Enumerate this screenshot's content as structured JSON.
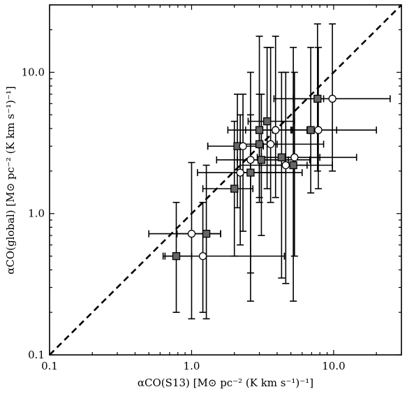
{
  "chart_data": {
    "type": "scatter",
    "xlabel": "αCO(S13) [M⊙ pc⁻² (K km s⁻¹)⁻¹]",
    "ylabel": "αCO(global) [M⊙ pc⁻² (K km s⁻¹)⁻¹]",
    "xscale": "log",
    "yscale": "log",
    "xlim": [
      0.1,
      30
    ],
    "ylim": [
      0.1,
      30
    ],
    "xticks": [
      {
        "value": 0.1,
        "label": "0.1"
      },
      {
        "value": 1.0,
        "label": "1.0"
      },
      {
        "value": 10.0,
        "label": "10.0"
      }
    ],
    "yticks": [
      {
        "value": 0.1,
        "label": "0.1"
      },
      {
        "value": 1.0,
        "label": "1.0"
      },
      {
        "value": 10.0,
        "label": "10.0"
      }
    ],
    "reference_line": {
      "style": "dashed",
      "color": "#000000",
      "from": [
        0.1,
        0.1
      ],
      "to": [
        30,
        30
      ]
    },
    "grid": false,
    "legend": "none",
    "series": [
      {
        "marker": "square",
        "fill": "#666666",
        "points": [
          {
            "x": 0.78,
            "y": 0.5,
            "xerr": [
              0.63,
              1.0
            ],
            "yerr": [
              0.2,
              1.2
            ]
          },
          {
            "x": 1.27,
            "y": 0.72,
            "xerr": [
              0.79,
              1.6
            ],
            "yerr": [
              0.18,
              2.2
            ]
          },
          {
            "x": 2.0,
            "y": 1.5,
            "xerr": [
              1.2,
              2.7
            ],
            "yerr": [
              0.5,
              4.5
            ]
          },
          {
            "x": 2.1,
            "y": 3.0,
            "xerr": [
              1.3,
              3.0
            ],
            "yerr": [
              1.1,
              7.0
            ]
          },
          {
            "x": 2.6,
            "y": 1.95,
            "xerr": [
              2.0,
              4.6
            ],
            "yerr": [
              0.24,
              5.0
            ]
          },
          {
            "x": 3.0,
            "y": 3.9,
            "xerr": [
              1.8,
              5.1
            ],
            "yerr": [
              1.3,
              18.0
            ]
          },
          {
            "x": 3.0,
            "y": 3.1,
            "xerr": [
              2.2,
              4.0
            ],
            "yerr": [
              1.2,
              7.0
            ]
          },
          {
            "x": 3.1,
            "y": 2.4,
            "xerr": [
              2.1,
              6.8
            ],
            "yerr": [
              0.7,
              7.0
            ]
          },
          {
            "x": 3.4,
            "y": 4.5,
            "xerr": [
              2.5,
              5.3
            ],
            "yerr": [
              1.5,
              15.0
            ]
          },
          {
            "x": 4.3,
            "y": 2.5,
            "xerr": [
              2.9,
              8.0
            ],
            "yerr": [
              0.35,
              10.0
            ]
          },
          {
            "x": 5.2,
            "y": 2.2,
            "xerr": [
              2.2,
              9.8
            ],
            "yerr": [
              0.24,
              15.0
            ]
          },
          {
            "x": 6.9,
            "y": 3.9,
            "xerr": [
              4.6,
              10.5
            ],
            "yerr": [
              1.4,
              15.0
            ]
          },
          {
            "x": 7.7,
            "y": 6.5,
            "xerr": [
              5.2,
              8.5
            ],
            "yerr": [
              2.0,
              22.0
            ]
          }
        ]
      },
      {
        "marker": "circle",
        "fill": "#ffffff",
        "points": [
          {
            "x": 1.0,
            "y": 0.72,
            "xerr": [
              0.5,
              1.6
            ],
            "yerr": [
              0.18,
              2.3
            ]
          },
          {
            "x": 1.2,
            "y": 0.5,
            "xerr": [
              0.65,
              4.5
            ],
            "yerr": [
              0.2,
              1.2
            ]
          },
          {
            "x": 2.2,
            "y": 1.95,
            "xerr": [
              1.1,
              6.0
            ],
            "yerr": [
              0.6,
              5.0
            ]
          },
          {
            "x": 2.3,
            "y": 3.0,
            "xerr": [
              1.3,
              3.2
            ],
            "yerr": [
              0.75,
              7.0
            ]
          },
          {
            "x": 2.6,
            "y": 2.4,
            "xerr": [
              1.5,
              4.8
            ],
            "yerr": [
              0.38,
              10.0
            ]
          },
          {
            "x": 3.6,
            "y": 3.1,
            "xerr": [
              2.6,
              8.5
            ],
            "yerr": [
              1.2,
              15.0
            ]
          },
          {
            "x": 3.9,
            "y": 3.9,
            "xerr": [
              2.4,
              6.5
            ],
            "yerr": [
              1.3,
              18.0
            ]
          },
          {
            "x": 4.6,
            "y": 2.2,
            "xerr": [
              3.0,
              6.5
            ],
            "yerr": [
              0.32,
              10.0
            ]
          },
          {
            "x": 5.3,
            "y": 2.5,
            "xerr": [
              3.1,
              14.5
            ],
            "yerr": [
              0.5,
              10.0
            ]
          },
          {
            "x": 7.8,
            "y": 3.9,
            "xerr": [
              5.0,
              20.0
            ],
            "yerr": [
              1.5,
              15.0
            ]
          },
          {
            "x": 9.8,
            "y": 6.5,
            "xerr": [
              3.8,
              25.0
            ],
            "yerr": [
              2.0,
              22.0
            ]
          }
        ]
      }
    ]
  }
}
